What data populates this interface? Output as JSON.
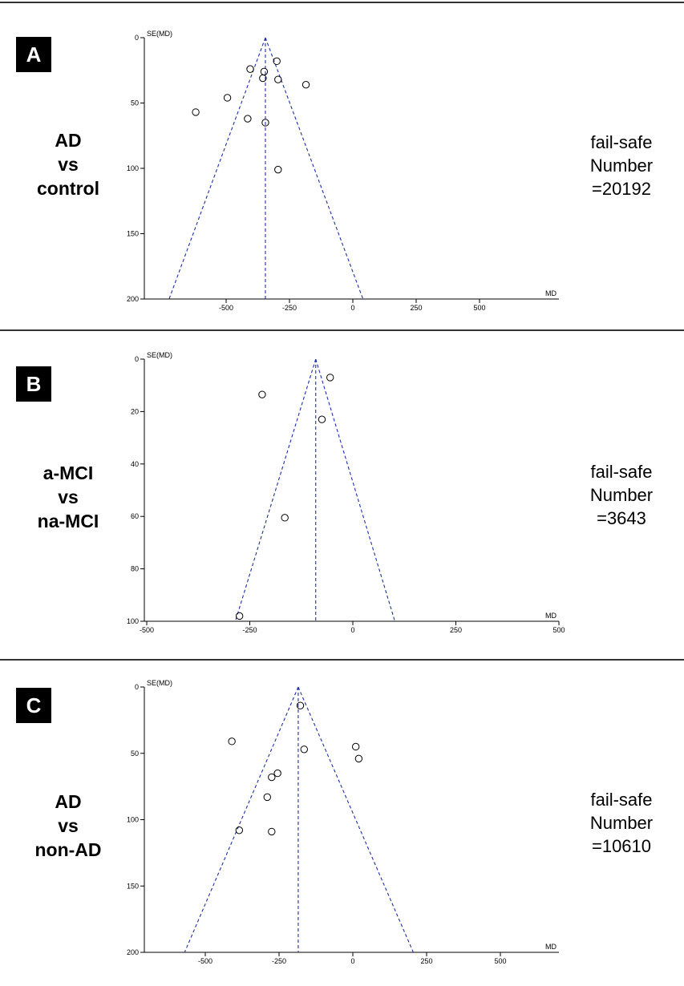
{
  "panels": [
    {
      "letter": "A",
      "group_lines": [
        "AD",
        "vs",
        "control"
      ],
      "failsafe_lines": [
        "fail-safe",
        "Number",
        "=20192"
      ]
    },
    {
      "letter": "B",
      "group_lines": [
        "a-MCI",
        "vs",
        "na-MCI"
      ],
      "failsafe_lines": [
        "fail-safe",
        "Number",
        "=3643"
      ]
    },
    {
      "letter": "C",
      "group_lines": [
        "AD",
        "vs",
        "non-AD"
      ],
      "failsafe_lines": [
        "fail-safe",
        "Number",
        "=10610"
      ]
    }
  ],
  "chart_data": [
    {
      "type": "scatter",
      "subtype": "funnel",
      "title": "",
      "xlabel": "MD",
      "ylabel": "SE(MD)",
      "x_ticks": [
        -500,
        -250,
        0,
        250,
        500
      ],
      "y_ticks": [
        0,
        50,
        100,
        150,
        200
      ],
      "ylim": [
        0,
        200
      ],
      "y_inverted": true,
      "pooled_estimate": -345,
      "funnel_base": [
        -725,
        40
      ],
      "points": [
        {
          "x": -620,
          "y": 57
        },
        {
          "x": -495,
          "y": 46
        },
        {
          "x": -415,
          "y": 62
        },
        {
          "x": -405,
          "y": 24
        },
        {
          "x": -350,
          "y": 26
        },
        {
          "x": -355,
          "y": 31
        },
        {
          "x": -345,
          "y": 65
        },
        {
          "x": -300,
          "y": 18
        },
        {
          "x": -295,
          "y": 32
        },
        {
          "x": -185,
          "y": 36
        },
        {
          "x": -295,
          "y": 101
        }
      ],
      "line_color": "#1f2fa8",
      "grid": false
    },
    {
      "type": "scatter",
      "subtype": "funnel",
      "title": "",
      "xlabel": "MD",
      "ylabel": "SE(MD)",
      "x_ticks": [
        -500,
        -250,
        0,
        250,
        500
      ],
      "y_ticks": [
        0,
        20,
        40,
        60,
        80,
        100
      ],
      "ylim": [
        0,
        100
      ],
      "y_inverted": true,
      "pooled_estimate": -90,
      "funnel_base": [
        -285,
        102
      ],
      "points": [
        {
          "x": -55,
          "y": 7
        },
        {
          "x": -220,
          "y": 13.5
        },
        {
          "x": -75,
          "y": 23
        },
        {
          "x": -165,
          "y": 60.5
        },
        {
          "x": -275,
          "y": 98
        }
      ],
      "line_color": "#1f2fa8",
      "grid": false
    },
    {
      "type": "scatter",
      "subtype": "funnel",
      "title": "",
      "xlabel": "MD",
      "ylabel": "SE(MD)",
      "x_ticks": [
        -500,
        -250,
        0,
        250,
        500
      ],
      "y_ticks": [
        0,
        50,
        100,
        150,
        200
      ],
      "ylim": [
        0,
        200
      ],
      "y_inverted": true,
      "pooled_estimate": -185,
      "funnel_base": [
        -570,
        205
      ],
      "points": [
        {
          "x": -178,
          "y": 14
        },
        {
          "x": -410,
          "y": 41
        },
        {
          "x": -165,
          "y": 47
        },
        {
          "x": 10,
          "y": 45
        },
        {
          "x": 20,
          "y": 54
        },
        {
          "x": -255,
          "y": 65
        },
        {
          "x": -275,
          "y": 68
        },
        {
          "x": -290,
          "y": 83
        },
        {
          "x": -385,
          "y": 108
        },
        {
          "x": -275,
          "y": 109
        }
      ],
      "line_color": "#1f2fa8",
      "grid": false
    }
  ]
}
